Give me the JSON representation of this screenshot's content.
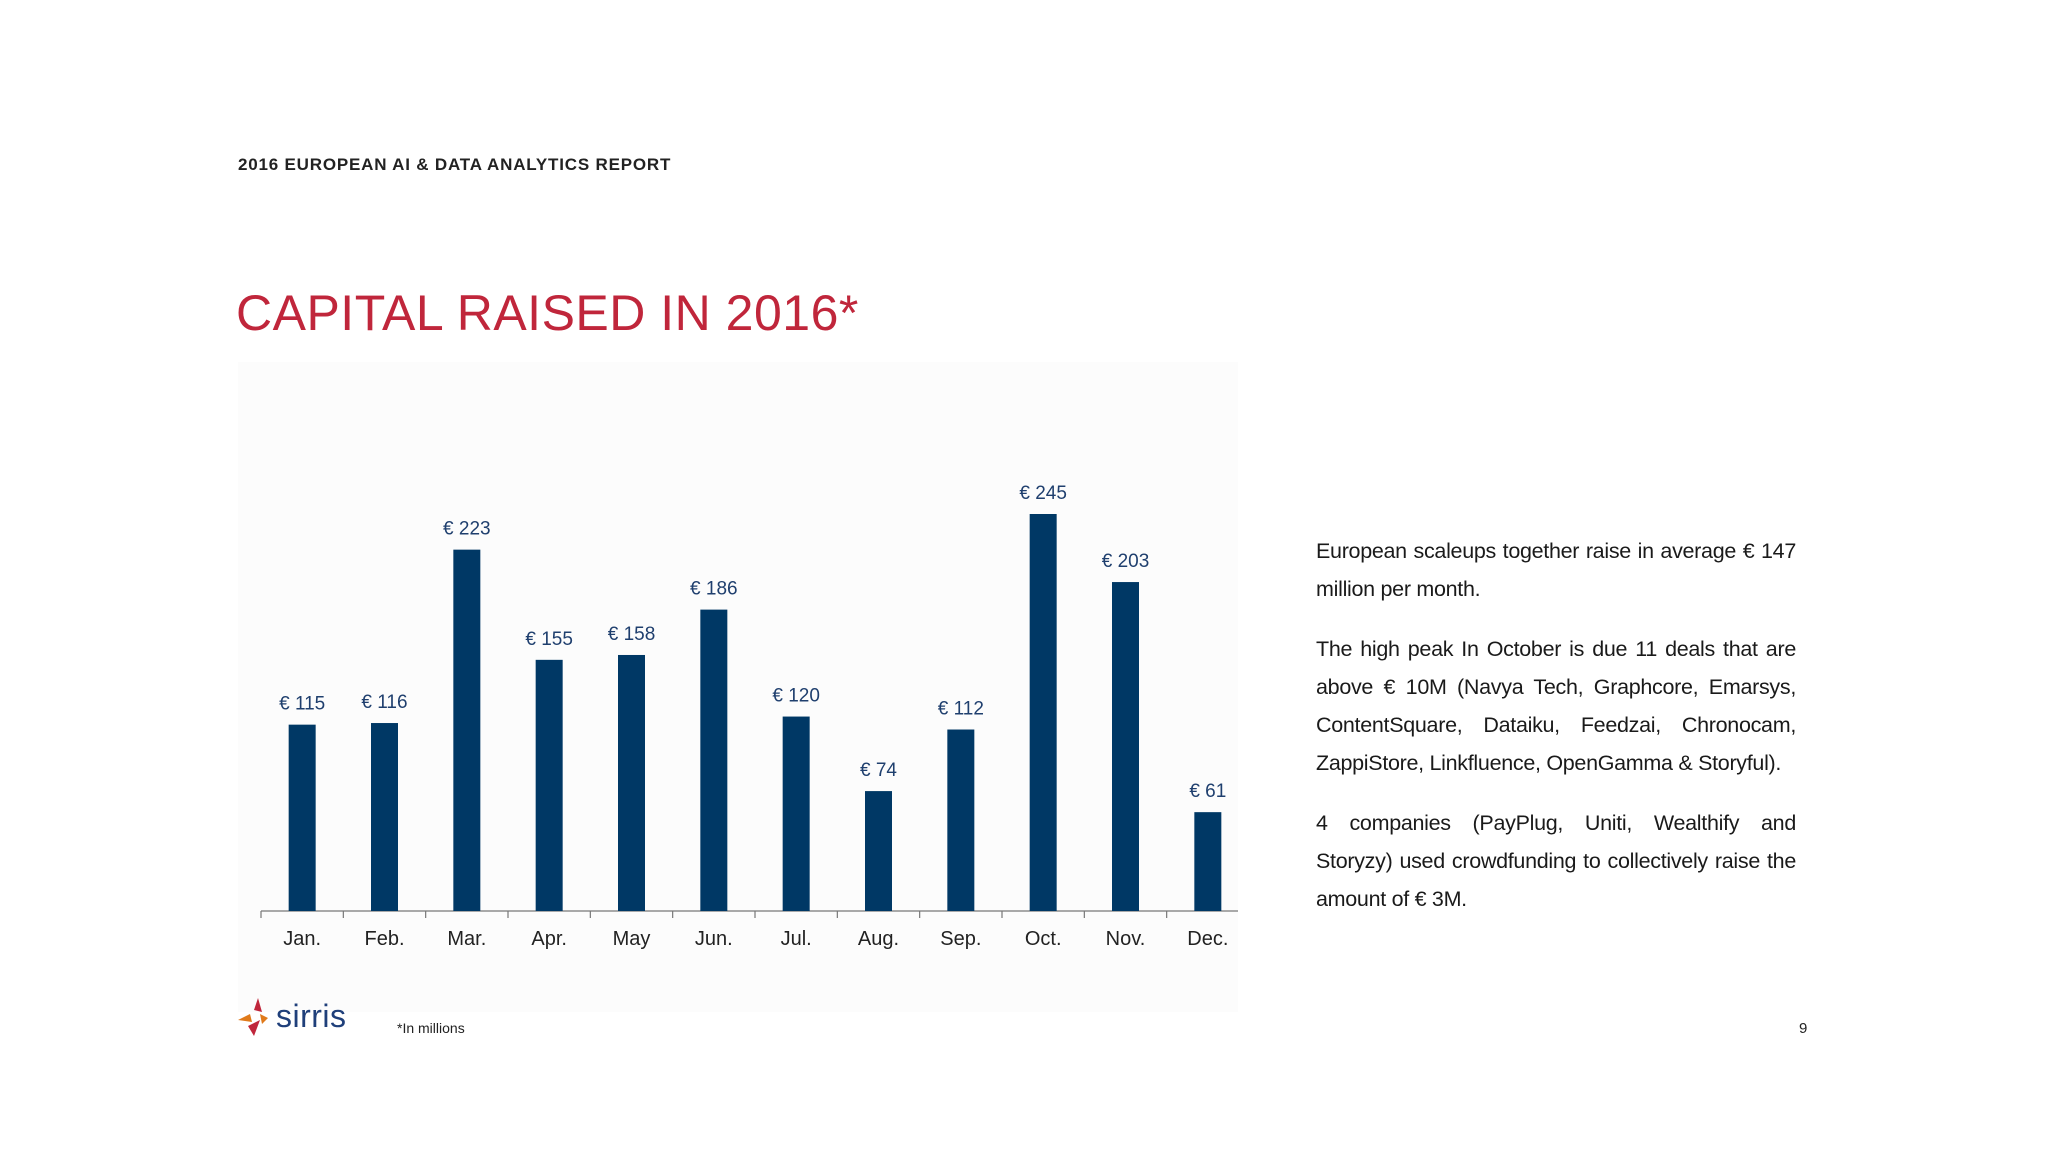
{
  "header": {
    "report_title": "2016 EUROPEAN AI & DATA ANALYTICS REPORT"
  },
  "slide": {
    "title": "CAPITAL RAISED IN 2016*"
  },
  "description": {
    "paragraphs": [
      "European scaleups together raise in average € 147 million per month.",
      "The high peak In October is due 11 deals that are above € 10M (Navya Tech, Graphcore, Emarsys, ContentSquare, Dataiku, Feedzai, Chronocam, ZappiStore, Linkfluence, OpenGamma & Storyful).",
      "4 companies (PayPlug, Uniti, Wealthify and Storyzy) used crowdfunding to collectively raise the amount of € 3M."
    ]
  },
  "footer": {
    "logo_text": "sirris",
    "footnote": "*In millions",
    "page_number": "9"
  },
  "colors": {
    "bar": "#003865",
    "title": "#c0263b",
    "label": "#1f3f6e"
  },
  "chart_data": {
    "type": "bar",
    "categories": [
      "Jan.",
      "Feb.",
      "Mar.",
      "Apr.",
      "May",
      "Jun.",
      "Jul.",
      "Aug.",
      "Sep.",
      "Oct.",
      "Nov.",
      "Dec."
    ],
    "values": [
      115,
      116,
      223,
      155,
      158,
      186,
      120,
      74,
      112,
      245,
      203,
      61
    ],
    "data_labels": [
      "€ 115",
      "€ 116",
      "€ 223",
      "€ 155",
      "€ 158",
      "€ 186",
      "€ 120",
      "€ 74",
      "€ 112",
      "€ 245",
      "€ 203",
      "€ 61"
    ],
    "ylim": [
      0,
      245
    ],
    "grid": false,
    "legend": "none"
  }
}
